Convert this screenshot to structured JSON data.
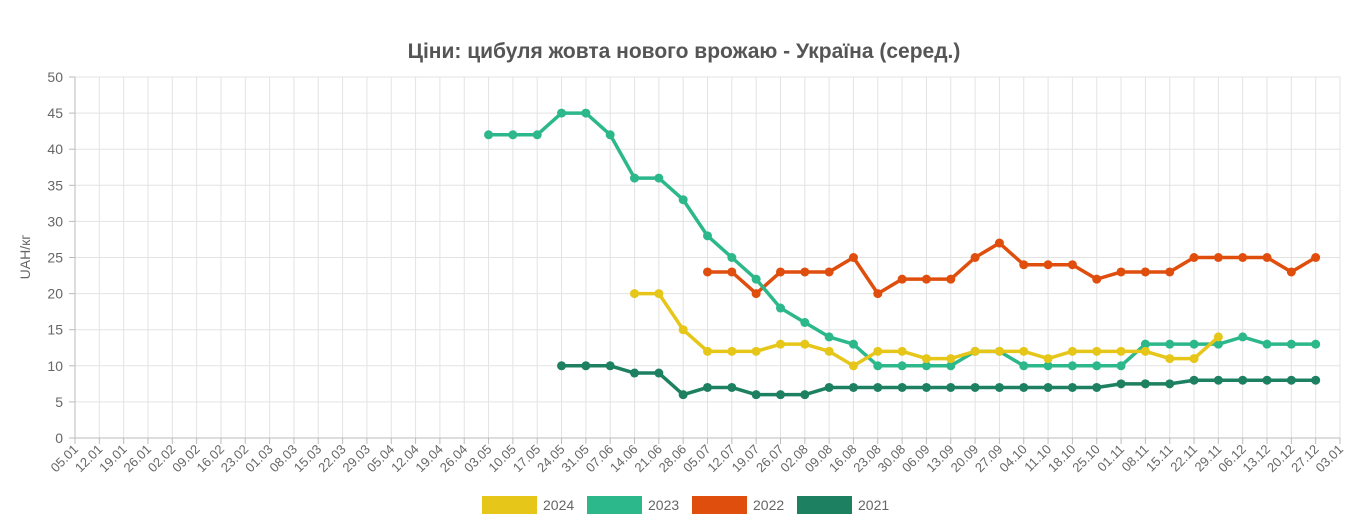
{
  "chart_data": {
    "type": "line",
    "title": "Ціни: цибуля жовта нового врожаю - Україна (серед.)",
    "xlabel": "",
    "ylabel": "UAH/кг",
    "ylim": [
      0,
      50
    ],
    "y_ticks": [
      "0",
      "5",
      "10",
      "15",
      "20",
      "25",
      "30",
      "35",
      "40",
      "45",
      "50"
    ],
    "categories": [
      "05.01",
      "12.01",
      "19.01",
      "26.01",
      "02.02",
      "09.02",
      "16.02",
      "23.02",
      "01.03",
      "08.03",
      "15.03",
      "22.03",
      "29.03",
      "05.04",
      "12.04",
      "19.04",
      "26.04",
      "03.05",
      "10.05",
      "17.05",
      "24.05",
      "31.05",
      "07.06",
      "14.06",
      "21.06",
      "28.06",
      "05.07",
      "12.07",
      "19.07",
      "26.07",
      "02.08",
      "09.08",
      "16.08",
      "23.08",
      "30.08",
      "06.09",
      "13.09",
      "20.09",
      "27.09",
      "04.10",
      "11.10",
      "18.10",
      "25.10",
      "01.11",
      "08.11",
      "15.11",
      "22.11",
      "29.11",
      "06.12",
      "13.12",
      "20.12",
      "27.12",
      "03.01"
    ],
    "grid": true,
    "legend_position": "bottom",
    "series": [
      {
        "name": "2024",
        "color": "#E6C619",
        "values": [
          null,
          null,
          null,
          null,
          null,
          null,
          null,
          null,
          null,
          null,
          null,
          null,
          null,
          null,
          null,
          null,
          null,
          null,
          null,
          null,
          null,
          null,
          null,
          20,
          20,
          15,
          12,
          12,
          12,
          13,
          13,
          12,
          10,
          12,
          12,
          11,
          11,
          12,
          12,
          12,
          11,
          12,
          12,
          12,
          12,
          11,
          11,
          14,
          null,
          null,
          null,
          null,
          null
        ]
      },
      {
        "name": "2023",
        "color": "#2CB88A",
        "values": [
          null,
          null,
          null,
          null,
          null,
          null,
          null,
          null,
          null,
          null,
          null,
          null,
          null,
          null,
          null,
          null,
          null,
          42,
          42,
          42,
          45,
          45,
          42,
          36,
          36,
          33,
          28,
          25,
          22,
          18,
          16,
          14,
          13,
          10,
          10,
          10,
          10,
          12,
          12,
          10,
          10,
          10,
          10,
          10,
          13,
          13,
          13,
          13,
          14,
          13,
          13,
          13,
          null
        ]
      },
      {
        "name": "2022",
        "color": "#E04E0E",
        "values": [
          null,
          null,
          null,
          null,
          null,
          null,
          null,
          null,
          null,
          null,
          null,
          null,
          null,
          null,
          null,
          null,
          null,
          null,
          null,
          null,
          null,
          null,
          null,
          null,
          null,
          null,
          23,
          23,
          20,
          23,
          23,
          23,
          25,
          20,
          22,
          22,
          22,
          25,
          27,
          24,
          24,
          24,
          22,
          23,
          23,
          23,
          25,
          25,
          25,
          25,
          23,
          25,
          null
        ]
      },
      {
        "name": "2021",
        "color": "#1D8060",
        "values": [
          null,
          null,
          null,
          null,
          null,
          null,
          null,
          null,
          null,
          null,
          null,
          null,
          null,
          null,
          null,
          null,
          null,
          null,
          null,
          null,
          10,
          10,
          10,
          9,
          9,
          6,
          7,
          7,
          6,
          6,
          6,
          7,
          7,
          7,
          7,
          7,
          7,
          7,
          7,
          7,
          7,
          7,
          7,
          7.5,
          7.5,
          7.5,
          8,
          8,
          8,
          8,
          8,
          8,
          null
        ]
      }
    ]
  }
}
